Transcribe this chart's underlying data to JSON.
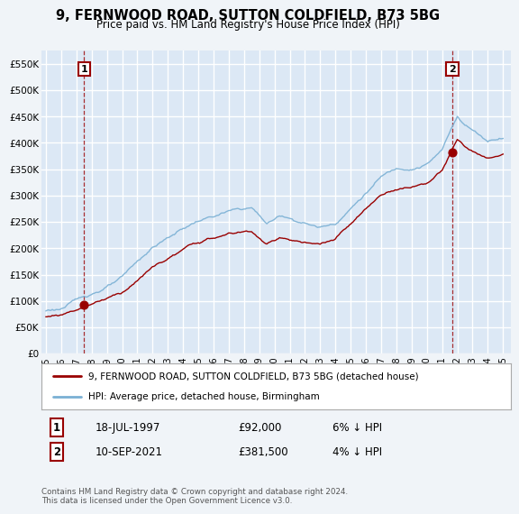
{
  "title": "9, FERNWOOD ROAD, SUTTON COLDFIELD, B73 5BG",
  "subtitle": "Price paid vs. HM Land Registry's House Price Index (HPI)",
  "background_color": "#f0f4f8",
  "plot_bg_color": "#dce8f5",
  "grid_color": "#ffffff",
  "sale1": {
    "date_num": 1997.54,
    "price": 92000,
    "label": "1",
    "date_str": "18-JUL-1997",
    "pct": "6% ↓ HPI"
  },
  "sale2": {
    "date_num": 2021.7,
    "price": 381500,
    "label": "2",
    "date_str": "10-SEP-2021",
    "pct": "4% ↓ HPI"
  },
  "legend_label1": "9, FERNWOOD ROAD, SUTTON COLDFIELD, B73 5BG (detached house)",
  "legend_label2": "HPI: Average price, detached house, Birmingham",
  "footnote": "Contains HM Land Registry data © Crown copyright and database right 2024.\nThis data is licensed under the Open Government Licence v3.0.",
  "sale_color": "#990000",
  "hpi_color": "#7ab0d4",
  "ylim": [
    0,
    575000
  ],
  "xlim_start": 1994.7,
  "xlim_end": 2025.5,
  "yticks": [
    0,
    50000,
    100000,
    150000,
    200000,
    250000,
    300000,
    350000,
    400000,
    450000,
    500000,
    550000
  ],
  "ytick_labels": [
    "£0",
    "£50K",
    "£100K",
    "£150K",
    "£200K",
    "£250K",
    "£300K",
    "£350K",
    "£400K",
    "£450K",
    "£500K",
    "£550K"
  ]
}
